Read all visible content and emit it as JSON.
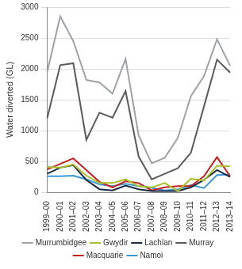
{
  "chart_data": {
    "type": "line",
    "y_label": "Water diverted (GL)",
    "categories": [
      "1999–00",
      "2000–01",
      "2001–02",
      "2002–03",
      "2003–04",
      "2004–05",
      "2005–06",
      "2006–07",
      "2007–08",
      "2008–09",
      "2009–10",
      "2010–11",
      "2011–12",
      "2012–13",
      "2013–14"
    ],
    "series": [
      {
        "name": "Murrumbidgee",
        "color": "#9ea3a8",
        "values": [
          1950,
          2850,
          2450,
          1820,
          1780,
          1600,
          2160,
          920,
          470,
          560,
          880,
          1560,
          1880,
          2480,
          2050
        ]
      },
      {
        "name": "Gwydir",
        "color": "#a9bf2c",
        "values": [
          410,
          400,
          450,
          270,
          150,
          150,
          210,
          100,
          80,
          150,
          20,
          220,
          190,
          430,
          420
        ]
      },
      {
        "name": "Lachlan",
        "color": "#1a2a44",
        "values": [
          300,
          400,
          440,
          200,
          50,
          30,
          110,
          50,
          20,
          20,
          20,
          80,
          200,
          360,
          250
        ]
      },
      {
        "name": "Murray",
        "color": "#5a5a5a",
        "values": [
          1200,
          2060,
          2090,
          850,
          1290,
          1210,
          1640,
          580,
          210,
          300,
          390,
          640,
          1390,
          2150,
          1940
        ]
      },
      {
        "name": "Macquarie",
        "color": "#c8201e",
        "values": [
          370,
          460,
          550,
          360,
          170,
          80,
          180,
          150,
          30,
          80,
          100,
          100,
          260,
          570,
          260
        ]
      },
      {
        "name": "Namoi",
        "color": "#3a9ad9",
        "values": [
          260,
          260,
          270,
          210,
          130,
          100,
          140,
          100,
          70,
          30,
          50,
          120,
          70,
          280,
          290
        ]
      }
    ],
    "ylim": [
      0,
      3000
    ],
    "yticks": [
      0,
      500,
      1000,
      1500,
      2000,
      2500,
      3000
    ],
    "grid": true,
    "legend": "bottom"
  }
}
